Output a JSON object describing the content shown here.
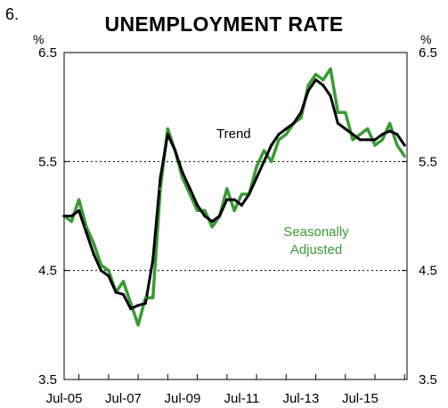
{
  "figure_number": "6.",
  "colors": {
    "seasonally_adjusted": "#3a9a35",
    "trend": "#000000",
    "grid": "#000000"
  },
  "chart_data": {
    "type": "line",
    "title": "UNEMPLOYMENT RATE",
    "unit_left": "%",
    "unit_right": "%",
    "ylim": [
      3.5,
      6.5
    ],
    "yticks": [
      3.5,
      4.5,
      5.5,
      6.5
    ],
    "ytick_labels": [
      "3.5",
      "4.5",
      "5.5",
      "6.5"
    ],
    "gridlines_at": [
      4.5,
      5.5
    ],
    "x_range": [
      "2005-07",
      "2017-02"
    ],
    "xtick_labels": [
      "Jul-05",
      "Jul-07",
      "Jul-09",
      "Jul-11",
      "Jul-13",
      "Jul-15"
    ],
    "annotations": {
      "trend": "Trend",
      "sa_line1": "Seasonally",
      "sa_line2": "Adjusted"
    },
    "x": [
      "2005-07",
      "2005-10",
      "2006-01",
      "2006-04",
      "2006-07",
      "2006-10",
      "2007-01",
      "2007-04",
      "2007-07",
      "2007-10",
      "2008-01",
      "2008-04",
      "2008-07",
      "2008-10",
      "2009-01",
      "2009-04",
      "2009-07",
      "2009-10",
      "2010-01",
      "2010-04",
      "2010-07",
      "2010-10",
      "2011-01",
      "2011-04",
      "2011-07",
      "2011-10",
      "2012-01",
      "2012-04",
      "2012-07",
      "2012-10",
      "2013-01",
      "2013-04",
      "2013-07",
      "2013-10",
      "2014-01",
      "2014-04",
      "2014-07",
      "2014-10",
      "2015-01",
      "2015-04",
      "2015-07",
      "2015-10",
      "2016-01",
      "2016-04",
      "2016-07",
      "2016-10",
      "2017-01"
    ],
    "series": [
      {
        "name": "Seasonally Adjusted",
        "values": [
          5.0,
          4.95,
          5.15,
          4.9,
          4.75,
          4.55,
          4.5,
          4.3,
          4.4,
          4.2,
          4.0,
          4.25,
          4.25,
          5.25,
          5.8,
          5.6,
          5.35,
          5.2,
          5.05,
          5.05,
          4.9,
          5.0,
          5.25,
          5.05,
          5.2,
          5.2,
          5.45,
          5.6,
          5.5,
          5.7,
          5.75,
          5.85,
          5.9,
          6.2,
          6.3,
          6.25,
          6.35,
          5.95,
          5.95,
          5.7,
          5.75,
          5.8,
          5.65,
          5.7,
          5.85,
          5.65,
          5.55
        ]
      },
      {
        "name": "Trend",
        "values": [
          5.0,
          5.0,
          5.05,
          4.85,
          4.65,
          4.5,
          4.45,
          4.3,
          4.28,
          4.15,
          4.18,
          4.2,
          4.6,
          5.35,
          5.75,
          5.6,
          5.4,
          5.25,
          5.1,
          5.0,
          4.95,
          5.0,
          5.15,
          5.15,
          5.1,
          5.2,
          5.35,
          5.5,
          5.65,
          5.75,
          5.8,
          5.85,
          5.95,
          6.15,
          6.25,
          6.2,
          6.1,
          5.85,
          5.8,
          5.75,
          5.7,
          5.7,
          5.7,
          5.75,
          5.78,
          5.75,
          5.65
        ]
      }
    ]
  }
}
